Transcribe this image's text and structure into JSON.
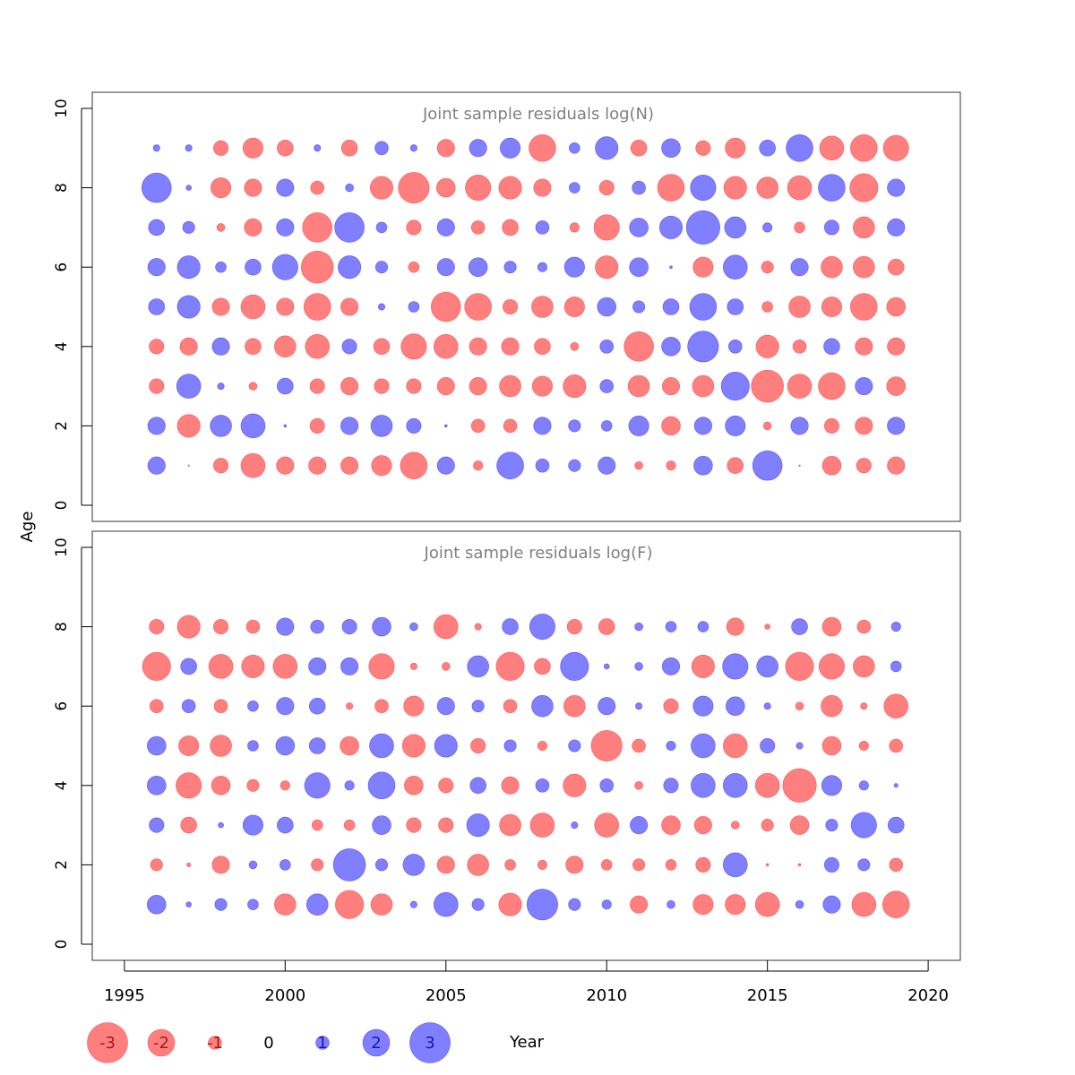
{
  "colors": {
    "positive": "#0000ff",
    "negative": "#ff0000",
    "title_text": "#808080",
    "axis": "#333333",
    "bubble_opacity": 0.5
  },
  "chart_data": {
    "type": "scatter",
    "subtype": "residual-bubble",
    "shared_x": {
      "label": "Year",
      "range": [
        1994,
        2021
      ],
      "ticks": [
        1995,
        2000,
        2005,
        2010,
        2015,
        2020
      ],
      "tick_labels": [
        "1995",
        "2000",
        "2005",
        "2010",
        "2015",
        "2020"
      ]
    },
    "y_label": "Age",
    "years": [
      1996,
      1997,
      1998,
      1999,
      2000,
      2001,
      2002,
      2003,
      2004,
      2005,
      2006,
      2007,
      2008,
      2009,
      2010,
      2011,
      2012,
      2013,
      2014,
      2015,
      2016,
      2017,
      2018,
      2019
    ],
    "panels": [
      {
        "title": "Joint sample residuals log(N)",
        "ylim": [
          0,
          10
        ],
        "yticks": [
          0,
          2,
          4,
          6,
          8,
          10
        ],
        "ytick_labels": [
          "0",
          "2",
          "4",
          "6",
          "8",
          "10"
        ],
        "ages": [
          1,
          2,
          3,
          4,
          5,
          6,
          7,
          8,
          9
        ],
        "residuals": [
          [
            1.3,
            0.1,
            -1.1,
            -1.8,
            -1.3,
            -1.3,
            -1.3,
            -1.5,
            -2.0,
            1.3,
            -0.7,
            2.0,
            1.0,
            0.9,
            1.3,
            -0.6,
            -0.7,
            1.4,
            -1.2,
            2.2,
            0.1,
            -1.4,
            -1.1,
            -1.3
          ],
          [
            1.3,
            -1.7,
            1.6,
            1.8,
            0.2,
            -1.1,
            1.3,
            1.6,
            1.1,
            0.2,
            -1.0,
            -1.0,
            1.3,
            0.9,
            0.8,
            1.5,
            -1.4,
            1.3,
            1.5,
            -0.6,
            1.3,
            -1.1,
            -1.3,
            1.3
          ],
          [
            -1.1,
            1.8,
            0.5,
            -0.6,
            1.2,
            -1.1,
            -1.3,
            -1.1,
            -1.1,
            -1.3,
            -1.3,
            -1.6,
            -1.5,
            -1.7,
            1.0,
            -1.6,
            -1.3,
            -1.6,
            2.1,
            -2.4,
            -1.8,
            -2.0,
            1.3,
            -1.4
          ],
          [
            -1.1,
            -1.3,
            1.3,
            -1.2,
            -1.6,
            -1.8,
            1.1,
            -1.2,
            -1.9,
            -1.8,
            -1.3,
            -1.3,
            -1.2,
            -0.6,
            1.0,
            -2.2,
            1.4,
            2.3,
            1.0,
            -1.7,
            -1.0,
            1.2,
            -1.3,
            -1.3
          ],
          [
            1.2,
            1.7,
            -1.3,
            -1.8,
            -1.3,
            -2.0,
            -1.3,
            0.5,
            0.8,
            -2.2,
            -2.0,
            -1.1,
            -1.6,
            -1.5,
            1.4,
            0.9,
            1.2,
            2.0,
            1.2,
            -0.8,
            -1.6,
            -1.5,
            -2.0,
            -1.4
          ],
          [
            1.3,
            1.7,
            0.8,
            1.2,
            1.9,
            -2.4,
            1.7,
            0.9,
            -0.8,
            1.3,
            1.4,
            0.9,
            0.7,
            1.5,
            -1.7,
            1.4,
            0.2,
            -1.5,
            1.8,
            -0.9,
            1.3,
            -1.6,
            -1.6,
            -1.2
          ],
          [
            1.2,
            0.9,
            -0.6,
            -1.3,
            1.3,
            -2.2,
            2.2,
            0.8,
            -1.1,
            1.3,
            -1.0,
            -1.2,
            1.0,
            -0.7,
            -1.9,
            1.4,
            1.7,
            2.5,
            1.6,
            0.7,
            -0.8,
            1.1,
            -1.6,
            1.3
          ],
          [
            2.2,
            0.4,
            -1.5,
            -1.3,
            1.3,
            -1.0,
            0.6,
            -1.7,
            -2.3,
            -1.4,
            -1.9,
            -1.7,
            -1.3,
            0.8,
            -1.1,
            1.0,
            -2.0,
            1.9,
            -1.7,
            -1.6,
            -1.8,
            2.0,
            -2.1,
            1.3
          ],
          [
            0.5,
            0.5,
            -1.1,
            -1.5,
            -1.2,
            0.5,
            -1.2,
            1.0,
            0.5,
            -1.3,
            1.3,
            1.5,
            -2.0,
            0.8,
            1.7,
            -1.2,
            1.4,
            -1.1,
            -1.5,
            1.2,
            2.0,
            -1.8,
            -2.0,
            -1.9
          ]
        ]
      },
      {
        "title": "Joint sample residuals log(F)",
        "ylim": [
          0,
          10
        ],
        "yticks": [
          0,
          2,
          4,
          6,
          8,
          10
        ],
        "ytick_labels": [
          "0",
          "2",
          "4",
          "6",
          "8",
          "10"
        ],
        "ages": [
          1,
          2,
          3,
          4,
          5,
          6,
          7,
          8
        ],
        "residuals": [
          [
            1.4,
            0.4,
            0.9,
            0.8,
            -1.6,
            1.6,
            -2.1,
            -1.6,
            0.5,
            1.8,
            0.9,
            -1.7,
            2.3,
            0.9,
            0.7,
            -1.3,
            0.6,
            -1.5,
            -1.5,
            -1.8,
            0.6,
            1.3,
            -1.8,
            -2.0
          ],
          [
            -0.9,
            -0.3,
            -1.3,
            0.6,
            0.8,
            -0.9,
            2.4,
            0.9,
            1.6,
            -1.3,
            -1.6,
            -0.8,
            -0.7,
            -1.3,
            -0.8,
            -0.9,
            -0.8,
            -1.1,
            1.8,
            -0.2,
            -0.2,
            1.1,
            0.9,
            -1.0
          ],
          [
            1.1,
            -1.2,
            0.4,
            1.5,
            1.2,
            -0.8,
            -0.8,
            1.4,
            -1.1,
            -1.1,
            1.7,
            -1.6,
            -1.8,
            0.5,
            -1.8,
            1.3,
            -1.4,
            -1.3,
            -0.6,
            -0.9,
            -1.4,
            0.9,
            1.9,
            1.2
          ],
          [
            1.4,
            -1.9,
            -1.4,
            -0.9,
            -0.7,
            1.9,
            0.7,
            2.0,
            -1.4,
            -1.1,
            1.2,
            -1.3,
            1.0,
            -1.7,
            1.0,
            -0.6,
            1.1,
            1.8,
            1.8,
            -1.8,
            -2.5,
            1.5,
            0.7,
            0.3
          ],
          [
            1.4,
            -1.5,
            -1.6,
            0.8,
            1.4,
            1.2,
            -1.4,
            1.8,
            -1.7,
            1.7,
            -1.1,
            0.9,
            -0.7,
            0.9,
            -2.3,
            -1.0,
            0.7,
            1.8,
            -1.8,
            1.1,
            0.5,
            -1.4,
            -0.7,
            -1.0
          ],
          [
            -1.0,
            1.0,
            -1.0,
            0.8,
            1.3,
            1.2,
            -0.5,
            -1.0,
            -1.5,
            1.3,
            0.9,
            -1.0,
            1.6,
            -1.6,
            1.3,
            0.5,
            -1.1,
            1.5,
            1.4,
            0.5,
            -0.6,
            -1.6,
            -0.5,
            -1.8
          ],
          [
            -2.1,
            1.2,
            -1.8,
            -1.7,
            -1.8,
            1.3,
            1.3,
            -1.9,
            -0.5,
            -0.6,
            1.6,
            -2.1,
            -1.2,
            2.1,
            0.4,
            0.6,
            1.3,
            -1.7,
            1.9,
            1.6,
            -2.1,
            -1.9,
            -1.6,
            0.8
          ],
          [
            -1.1,
            -1.7,
            -1.1,
            -1.0,
            1.3,
            1.0,
            1.1,
            1.4,
            0.6,
            -1.8,
            -0.5,
            1.2,
            1.9,
            -1.1,
            -1.2,
            0.6,
            0.8,
            0.8,
            -1.3,
            -0.4,
            1.2,
            -1.4,
            -1.0,
            0.7
          ]
        ]
      }
    ],
    "legend": {
      "placement": "bottom",
      "items": [
        {
          "label": "-3",
          "value": -3
        },
        {
          "label": "-2",
          "value": -2
        },
        {
          "label": "-1",
          "value": -1
        },
        {
          "label": "0",
          "value": 0
        },
        {
          "label": "1",
          "value": 1
        },
        {
          "label": "2",
          "value": 2
        },
        {
          "label": "3",
          "value": 3
        }
      ]
    }
  }
}
